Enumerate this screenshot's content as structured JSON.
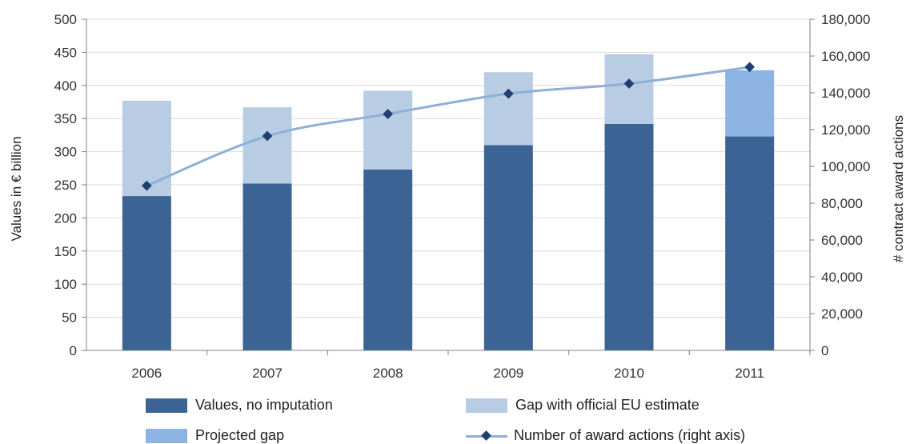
{
  "colors": {
    "values_no_imputation": "#3b6394",
    "gap_official": "#b8cce4",
    "projected_gap": "#8db3e2",
    "line": "#8eafd6",
    "marker": "#1f3f6e",
    "axis": "#808080",
    "grid": "#d9d9d9"
  },
  "legend": {
    "values_no_imputation": "Values, no imputation",
    "gap_official": "Gap with official EU estimate",
    "projected_gap": "Projected gap",
    "award_actions": "Number of award actions (right axis)"
  },
  "chart_data": {
    "type": "bar",
    "stacked": true,
    "categories": [
      "2006",
      "2007",
      "2008",
      "2009",
      "2010",
      "2011"
    ],
    "series": [
      {
        "name": "Values, no imputation",
        "type": "bar",
        "axis": "left",
        "values": [
          233,
          252,
          273,
          310,
          342,
          323
        ]
      },
      {
        "name": "Gap with official EU estimate",
        "type": "bar",
        "axis": "left",
        "values": [
          144,
          115,
          119,
          110,
          105,
          0
        ]
      },
      {
        "name": "Projected gap",
        "type": "bar",
        "axis": "left",
        "values": [
          0,
          0,
          0,
          0,
          0,
          100
        ]
      },
      {
        "name": "Number of award actions (right axis)",
        "type": "line",
        "axis": "right",
        "values": [
          89500,
          116500,
          128500,
          139500,
          145000,
          154000
        ]
      }
    ],
    "ylabel": "Values in € billion",
    "ylabel_right": "# contract award actions",
    "ylim": [
      0,
      500
    ],
    "ylim_right": [
      0,
      180000
    ],
    "yticks": [
      "0",
      "50",
      "100",
      "150",
      "200",
      "250",
      "300",
      "350",
      "400",
      "450",
      "500"
    ],
    "yticks_right": [
      "0",
      "20,000",
      "40,000",
      "60,000",
      "80,000",
      "100,000",
      "120,000",
      "140,000",
      "160,000",
      "180,000"
    ],
    "grid": true,
    "legend_position": "bottom"
  }
}
